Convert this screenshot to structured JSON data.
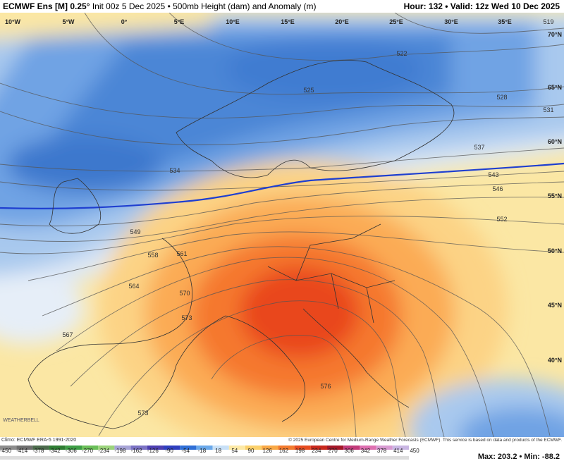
{
  "header": {
    "model": "ECMWF Ens [M] 0.25°",
    "description": "Init 00z 5 Dec 2025 • 500mb Height (dam) and Anomaly (m)",
    "valid": "Hour: 132 • Valid: 12z Wed 10 Dec 2025"
  },
  "map": {
    "longitudes": [
      "10°W",
      "5°W",
      "0°",
      "5°E",
      "10°E",
      "15°E",
      "20°E",
      "25°E",
      "30°E",
      "35°E"
    ],
    "latitudes": [
      "70°N",
      "65°N",
      "60°N",
      "55°N",
      "50°N",
      "45°N",
      "40°N"
    ],
    "contour_labels": [
      "519",
      "522",
      "525",
      "528",
      "531",
      "534",
      "537",
      "543",
      "546",
      "552",
      "549",
      "558",
      "561",
      "564",
      "570",
      "573",
      "567",
      "576",
      "573"
    ]
  },
  "footer": {
    "climo": "Climo: ECMWF ERA-5 1991-2020",
    "credit": "© 2025 European Centre for Medium-Range Weather Forecasts (ECMWF). This service is based on data and products of the ECMWF.",
    "brand": "WEATHERBELL"
  },
  "colorbar": {
    "labels": [
      -450,
      -414,
      -378,
      -342,
      -306,
      -270,
      -234,
      -198,
      -162,
      -126,
      -90,
      -54,
      -18,
      18,
      54,
      90,
      126,
      162,
      198,
      234,
      270,
      306,
      342,
      378,
      414,
      450
    ]
  },
  "stats": {
    "max_label": "Max:",
    "max": 203.2,
    "separator": "•",
    "min_label": "Min:",
    "min": -88.2
  }
}
